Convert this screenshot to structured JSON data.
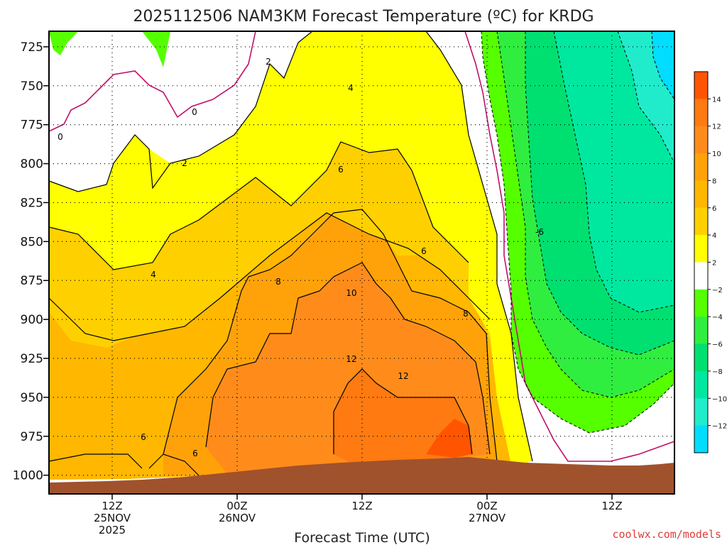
{
  "chart_data": {
    "type": "contour",
    "title": "2025112506 NAM3KM Forecast Temperature (ºC) for KRDG",
    "xlabel": "Forecast Time (UTC)",
    "ylabel": "",
    "credit": "coolwx.com/models",
    "y_axis": {
      "ticks": [
        "725",
        "750",
        "775",
        "800",
        "825",
        "850",
        "875",
        "900",
        "925",
        "950",
        "975",
        "1000"
      ],
      "range": [
        715,
        1012
      ],
      "orientation": "pressure, increasing downward"
    },
    "x_axis": {
      "ticks": [
        {
          "lines": [
            "12Z",
            "25NOV",
            "2025"
          ]
        },
        {
          "lines": [
            "00Z",
            "26NOV"
          ]
        },
        {
          "lines": [
            "12Z"
          ]
        },
        {
          "lines": [
            "00Z",
            "27NOV"
          ]
        },
        {
          "lines": [
            "12Z"
          ]
        }
      ]
    },
    "colorbar": {
      "labels": [
        "14",
        "12",
        "10",
        "8",
        "6",
        "4",
        "2",
        "−2",
        "−4",
        "−6",
        "−8",
        "−10",
        "−12"
      ],
      "colors": [
        "#ff5500",
        "#ff7a10",
        "#ff8c1a",
        "#ffa20a",
        "#ffb700",
        "#ffd000",
        "#ffff00",
        "#ffffff",
        "#55ff00",
        "#2fee40",
        "#00e070",
        "#00e8a0",
        "#20eccc",
        "#00ddff"
      ]
    },
    "contour_labels": [
      {
        "text": "0"
      },
      {
        "text": "0"
      },
      {
        "text": "2"
      },
      {
        "text": "2"
      },
      {
        "text": "4"
      },
      {
        "text": "4"
      },
      {
        "text": "6"
      },
      {
        "text": "6"
      },
      {
        "text": "6"
      },
      {
        "text": "6"
      },
      {
        "text": "8"
      },
      {
        "text": "8"
      },
      {
        "text": "10"
      },
      {
        "text": "12"
      },
      {
        "text": "12"
      },
      {
        "text": "-6"
      }
    ],
    "grid": true,
    "terrain": "surface shown in brown along bottom"
  }
}
